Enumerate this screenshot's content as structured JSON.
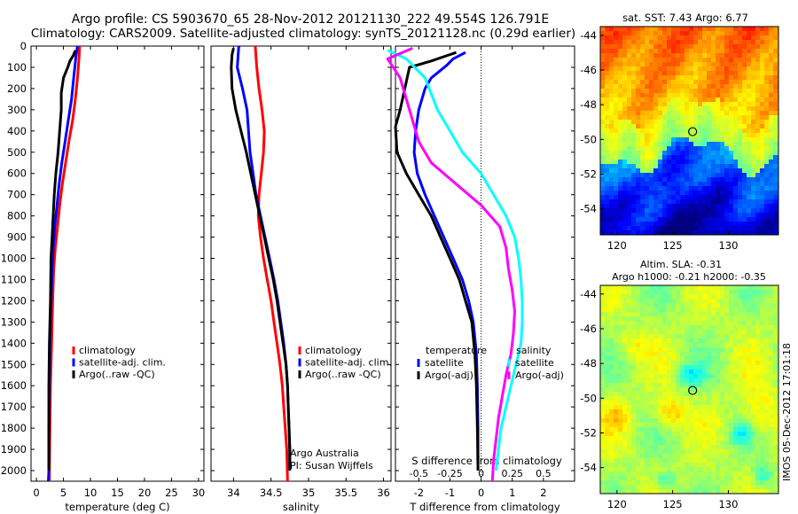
{
  "header": {
    "line1": "Argo profile: CS 5903670_65 28-Nov-2012 20121130_222 49.554S 126.791E",
    "line2": "Climatology: CARS2009. Satellite-adjusted climatology: synTS_20121128.nc (0.29d earlier)"
  },
  "colors": {
    "climatology": "#ff0000",
    "satellite": "#0000ff",
    "argo": "#000000",
    "sat_salinity": "#00ffff",
    "argo_salinity": "#ff00ff"
  },
  "chart_data": [
    {
      "id": "temperature",
      "type": "line",
      "xlabel": "temperature (deg C)",
      "xlim": [
        -1,
        31
      ],
      "ylim": [
        0,
        2050
      ],
      "y_reversed": true,
      "xticks": [
        0,
        5,
        10,
        15,
        20,
        25,
        30
      ],
      "yticks": [
        0,
        100,
        200,
        300,
        400,
        500,
        600,
        700,
        800,
        900,
        1000,
        1100,
        1200,
        1300,
        1400,
        1500,
        1600,
        1700,
        1800,
        1900,
        2000
      ],
      "legend": [
        "climatology",
        "satellite-adj. clim.",
        "Argo(..raw -QC)"
      ],
      "series": [
        {
          "name": "climatology",
          "color": "#ff0000",
          "points": [
            [
              8.0,
              0
            ],
            [
              7.9,
              50
            ],
            [
              7.6,
              150
            ],
            [
              7.2,
              250
            ],
            [
              6.7,
              350
            ],
            [
              6.0,
              450
            ],
            [
              5.4,
              550
            ],
            [
              4.8,
              650
            ],
            [
              4.3,
              750
            ],
            [
              3.9,
              850
            ],
            [
              3.5,
              950
            ],
            [
              3.2,
              1050
            ],
            [
              3.0,
              1200
            ],
            [
              2.8,
              1400
            ],
            [
              2.6,
              1600
            ],
            [
              2.5,
              1800
            ],
            [
              2.4,
              2000
            ],
            [
              2.4,
              2050
            ]
          ]
        },
        {
          "name": "satellite-adj. clim.",
          "color": "#0000ff",
          "points": [
            [
              7.6,
              0
            ],
            [
              7.3,
              50
            ],
            [
              6.9,
              150
            ],
            [
              6.5,
              250
            ],
            [
              5.9,
              350
            ],
            [
              5.3,
              450
            ],
            [
              4.7,
              550
            ],
            [
              4.2,
              650
            ],
            [
              3.8,
              750
            ],
            [
              3.4,
              850
            ],
            [
              3.1,
              950
            ],
            [
              2.9,
              1050
            ],
            [
              2.7,
              1200
            ],
            [
              2.5,
              1400
            ],
            [
              2.4,
              1600
            ],
            [
              2.3,
              1800
            ],
            [
              2.3,
              2000
            ],
            [
              2.2,
              2050
            ]
          ]
        },
        {
          "name": "Argo(..raw -QC)",
          "color": "#000000",
          "points": [
            [
              7.2,
              20
            ],
            [
              6.8,
              45
            ],
            [
              6.2,
              70
            ],
            [
              5.8,
              100
            ],
            [
              5.0,
              150
            ],
            [
              4.6,
              220
            ],
            [
              4.6,
              300
            ],
            [
              4.3,
              400
            ],
            [
              4.0,
              500
            ],
            [
              3.6,
              600
            ],
            [
              3.3,
              700
            ],
            [
              3.1,
              800
            ],
            [
              2.9,
              900
            ],
            [
              2.7,
              1000
            ],
            [
              2.6,
              1200
            ],
            [
              2.4,
              1400
            ],
            [
              2.3,
              1600
            ],
            [
              2.3,
              1800
            ],
            [
              2.3,
              2000
            ]
          ]
        }
      ]
    },
    {
      "id": "salinity",
      "type": "line",
      "xlabel": "salinity",
      "xlim": [
        33.7,
        36.1
      ],
      "ylim": [
        0,
        2050
      ],
      "y_reversed": true,
      "xticks": [
        34,
        34.5,
        35,
        35.5,
        36
      ],
      "legend": [
        "climatology",
        "satellite-adj. clim.",
        "Argo(..raw -QC)"
      ],
      "annotation": [
        "Argo Australia",
        "PI: Susan Wijffels"
      ],
      "series": [
        {
          "name": "climatology",
          "color": "#ff0000",
          "points": [
            [
              34.29,
              0
            ],
            [
              34.31,
              100
            ],
            [
              34.34,
              200
            ],
            [
              34.38,
              300
            ],
            [
              34.41,
              400
            ],
            [
              34.4,
              500
            ],
            [
              34.37,
              600
            ],
            [
              34.34,
              700
            ],
            [
              34.33,
              800
            ],
            [
              34.36,
              900
            ],
            [
              34.4,
              1000
            ],
            [
              34.45,
              1100
            ],
            [
              34.5,
              1200
            ],
            [
              34.54,
              1300
            ],
            [
              34.58,
              1400
            ],
            [
              34.62,
              1500
            ],
            [
              34.65,
              1600
            ],
            [
              34.67,
              1700
            ],
            [
              34.69,
              1800
            ],
            [
              34.71,
              1900
            ],
            [
              34.72,
              2050
            ]
          ]
        },
        {
          "name": "satellite-adj. clim.",
          "color": "#0000ff",
          "points": [
            [
              34.07,
              0
            ],
            [
              34.05,
              100
            ],
            [
              34.12,
              200
            ],
            [
              34.18,
              300
            ],
            [
              34.2,
              400
            ],
            [
              34.22,
              500
            ],
            [
              34.26,
              600
            ],
            [
              34.3,
              700
            ],
            [
              34.36,
              800
            ],
            [
              34.42,
              900
            ],
            [
              34.48,
              1000
            ],
            [
              34.54,
              1100
            ],
            [
              34.59,
              1200
            ],
            [
              34.63,
              1300
            ],
            [
              34.67,
              1400
            ],
            [
              34.7,
              1500
            ],
            [
              34.72,
              1600
            ],
            [
              34.73,
              1700
            ],
            [
              34.74,
              1800
            ],
            [
              34.75,
              1900
            ],
            [
              34.75,
              2000
            ]
          ]
        },
        {
          "name": "Argo(..raw -QC)",
          "color": "#000000",
          "points": [
            [
              34.0,
              10
            ],
            [
              33.98,
              40
            ],
            [
              33.97,
              100
            ],
            [
              33.98,
              200
            ],
            [
              34.03,
              300
            ],
            [
              34.1,
              400
            ],
            [
              34.17,
              500
            ],
            [
              34.23,
              600
            ],
            [
              34.29,
              700
            ],
            [
              34.35,
              800
            ],
            [
              34.41,
              900
            ],
            [
              34.47,
              1000
            ],
            [
              34.53,
              1100
            ],
            [
              34.58,
              1200
            ],
            [
              34.62,
              1300
            ],
            [
              34.66,
              1400
            ],
            [
              34.7,
              1500
            ],
            [
              34.72,
              1600
            ],
            [
              34.73,
              1700
            ],
            [
              34.74,
              1800
            ],
            [
              34.75,
              1900
            ],
            [
              34.75,
              2000
            ]
          ]
        }
      ]
    },
    {
      "id": "difference",
      "type": "line",
      "xlabel": "T difference from climatology",
      "xlabel2": "S difference from climatology",
      "xlim": [
        -2.75,
        3.0
      ],
      "ylim": [
        0,
        2050
      ],
      "y_reversed": true,
      "xticks": [
        -2,
        -1,
        0,
        1,
        2
      ],
      "xticks2": [
        -0.5,
        -0.25,
        0,
        0.25,
        0.5
      ],
      "xticks2_labels": [
        "-0.5",
        "-0.25",
        "0",
        "0.25",
        "0.5"
      ],
      "zero_line": true,
      "legend_title_left": "temperature",
      "legend_title_right": "salinity",
      "legend": [
        "satellite",
        "Argo(-adj)",
        "satellite",
        "Argo(-adj)"
      ],
      "series": [
        {
          "name": "satellite",
          "quantity": "temperature",
          "color": "#0000ff",
          "points": [
            [
              -0.5,
              30
            ],
            [
              -0.9,
              60
            ],
            [
              -1.1,
              90
            ],
            [
              -1.6,
              150
            ],
            [
              -1.8,
              200
            ],
            [
              -2.0,
              300
            ],
            [
              -2.1,
              400
            ],
            [
              -2.15,
              500
            ],
            [
              -2.05,
              600
            ],
            [
              -1.8,
              700
            ],
            [
              -1.5,
              800
            ],
            [
              -1.2,
              900
            ],
            [
              -0.9,
              1000
            ],
            [
              -0.6,
              1100
            ],
            [
              -0.4,
              1200
            ],
            [
              -0.25,
              1300
            ],
            [
              -0.15,
              1450
            ],
            [
              -0.12,
              1600
            ],
            [
              -0.1,
              1800
            ],
            [
              -0.1,
              2000
            ]
          ]
        },
        {
          "name": "Argo(-adj)",
          "quantity": "temperature",
          "color": "#000000",
          "points": [
            [
              -0.8,
              30
            ],
            [
              -1.6,
              70
            ],
            [
              -2.3,
              100
            ],
            [
              -2.6,
              300
            ],
            [
              -2.75,
              380
            ],
            [
              -2.7,
              500
            ],
            [
              -2.4,
              600
            ],
            [
              -2.0,
              700
            ],
            [
              -1.6,
              800
            ],
            [
              -1.3,
              900
            ],
            [
              -1.0,
              1000
            ],
            [
              -0.7,
              1100
            ],
            [
              -0.5,
              1200
            ],
            [
              -0.3,
              1300
            ],
            [
              -0.2,
              1450
            ],
            [
              -0.15,
              1600
            ],
            [
              -0.12,
              1800
            ],
            [
              -0.1,
              2000
            ]
          ]
        },
        {
          "name": "satellite",
          "quantity": "salinity",
          "color": "#00ffff",
          "points": [
            [
              -0.75,
              20
            ],
            [
              -0.6,
              60
            ],
            [
              -0.45,
              150
            ],
            [
              -0.35,
              300
            ],
            [
              -0.25,
              400
            ],
            [
              -0.15,
              500
            ],
            [
              0.0,
              600
            ],
            [
              0.1,
              700
            ],
            [
              0.2,
              800
            ],
            [
              0.27,
              900
            ],
            [
              0.3,
              1000
            ],
            [
              0.32,
              1100
            ],
            [
              0.33,
              1200
            ],
            [
              0.33,
              1300
            ],
            [
              0.32,
              1400
            ],
            [
              0.28,
              1500
            ],
            [
              0.24,
              1600
            ],
            [
              0.2,
              1700
            ],
            [
              0.16,
              1800
            ],
            [
              0.14,
              1900
            ],
            [
              0.12,
              2000
            ]
          ]
        },
        {
          "name": "Argo(-adj)",
          "quantity": "salinity",
          "color": "#ff00ff",
          "points": [
            [
              -0.55,
              10
            ],
            [
              -0.75,
              60
            ],
            [
              -0.65,
              150
            ],
            [
              -0.6,
              250
            ],
            [
              -0.55,
              350
            ],
            [
              -0.5,
              450
            ],
            [
              -0.4,
              550
            ],
            [
              -0.2,
              650
            ],
            [
              0.0,
              750
            ],
            [
              0.15,
              850
            ],
            [
              0.2,
              950
            ],
            [
              0.22,
              1050
            ],
            [
              0.25,
              1150
            ],
            [
              0.27,
              1250
            ],
            [
              0.26,
              1350
            ],
            [
              0.24,
              1450
            ],
            [
              0.2,
              1550
            ],
            [
              0.17,
              1650
            ],
            [
              0.14,
              1750
            ],
            [
              0.12,
              1850
            ],
            [
              0.1,
              1950
            ],
            [
              0.09,
              2050
            ]
          ]
        }
      ]
    },
    {
      "id": "sst_map",
      "type": "heatmap",
      "title": "sat. SST: 7.43 Argo: 6.77",
      "xlim": [
        118.5,
        134.5
      ],
      "ylim": [
        -55.5,
        -43.5
      ],
      "xticks": [
        120,
        125,
        130
      ],
      "yticks": [
        -44,
        -46,
        -48,
        -50,
        -52,
        -54
      ],
      "marker": {
        "lon": 126.791,
        "lat": -49.554
      }
    },
    {
      "id": "sla_map",
      "type": "heatmap",
      "title": "Altim. SLA: -0.31",
      "subtitle": "Argo h1000: -0.21 h2000: -0.35",
      "side_label": "IMOS 05-Dec-2012 17:01:18",
      "xlim": [
        118.5,
        134.5
      ],
      "ylim": [
        -55.5,
        -43.5
      ],
      "xticks": [
        120,
        125,
        130
      ],
      "yticks": [
        -44,
        -46,
        -48,
        -50,
        -52,
        -54
      ],
      "marker": {
        "lon": 126.791,
        "lat": -49.554
      }
    }
  ]
}
